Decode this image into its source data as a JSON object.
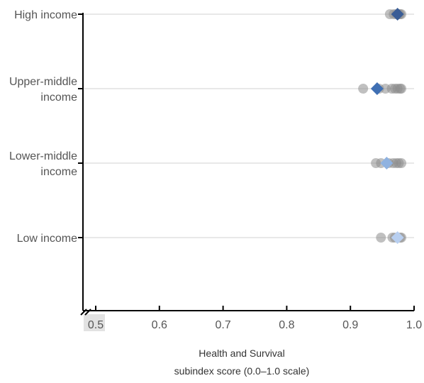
{
  "chart_data": {
    "type": "scatter",
    "title": "",
    "xlabel": [
      "Health and Survival",
      "subindex score (0.0–1.0 scale)"
    ],
    "ylabel": "",
    "xlim": [
      0.5,
      1.0
    ],
    "x_ticks": [
      "0.5",
      "0.6",
      "0.7",
      "0.8",
      "0.9",
      "1.0"
    ],
    "broken_axis": true,
    "grid": "horizontal",
    "categories": [
      {
        "label": [
          "High income"
        ],
        "country_scores": [
          0.962,
          0.968,
          0.972,
          0.976,
          0.978,
          0.98
        ],
        "group_average": 0.974,
        "average_color": "#3a5d96"
      },
      {
        "label": [
          "Upper-middle",
          "income"
        ],
        "country_scores": [
          0.92,
          0.945,
          0.955,
          0.965,
          0.97,
          0.974,
          0.978,
          0.98
        ],
        "group_average": 0.942,
        "average_color": "#3f6fb3"
      },
      {
        "label": [
          "Lower-middle",
          "income"
        ],
        "country_scores": [
          0.94,
          0.948,
          0.96,
          0.967,
          0.972,
          0.976,
          0.98
        ],
        "group_average": 0.957,
        "average_color": "#8fb2e0"
      },
      {
        "label": [
          "Low income"
        ],
        "country_scores": [
          0.948,
          0.966,
          0.97,
          0.978,
          0.98
        ],
        "group_average": 0.974,
        "average_color": "#b8cff0"
      }
    ]
  }
}
